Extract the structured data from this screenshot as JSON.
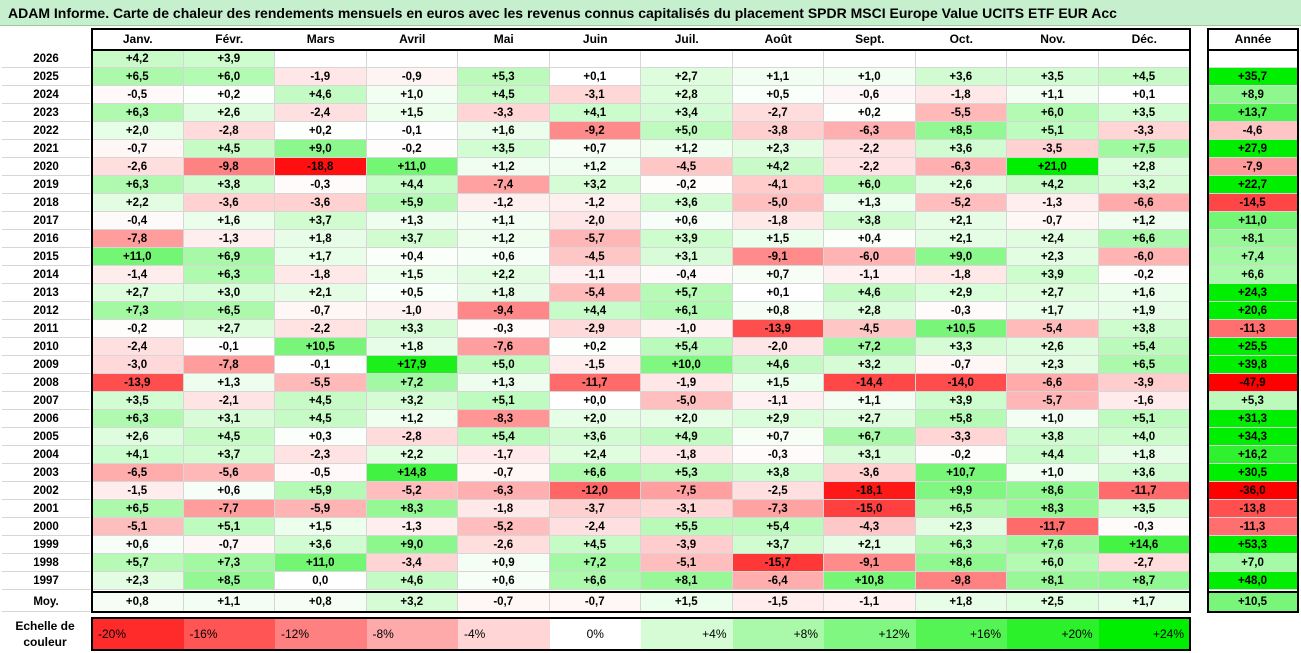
{
  "title": "ADAM Informe. Carte de chaleur des rendements mensuels en euros avec les revenus connus capitalisés du placement SPDR MSCI Europe Value UCITS ETF EUR Acc",
  "chart_data": {
    "type": "heatmap",
    "months": [
      "Janv.",
      "Févr.",
      "Mars",
      "Avril",
      "Mai",
      "Juin",
      "Juil.",
      "Août",
      "Sept.",
      "Oct.",
      "Nov.",
      "Déc."
    ],
    "annual_label": "Année",
    "average_label": "Moy.",
    "rows": [
      {
        "year": "2026",
        "values": [
          "+4,2",
          "+3,9",
          "",
          "",
          "",
          "",
          "",
          "",
          "",
          "",
          "",
          ""
        ],
        "annual": ""
      },
      {
        "year": "2025",
        "values": [
          "+6,5",
          "+6,0",
          "-1,9",
          "-0,9",
          "+5,3",
          "+0,1",
          "+2,7",
          "+1,1",
          "+1,0",
          "+3,6",
          "+3,5",
          "+4,5"
        ],
        "annual": "+35,7"
      },
      {
        "year": "2024",
        "values": [
          "-0,5",
          "+0,2",
          "+4,6",
          "+1,0",
          "+4,5",
          "-3,1",
          "+2,8",
          "+0,5",
          "-0,6",
          "-1,8",
          "+1,1",
          "+0,1"
        ],
        "annual": "+8,9"
      },
      {
        "year": "2023",
        "values": [
          "+6,3",
          "+2,6",
          "-2,4",
          "+1,5",
          "-3,3",
          "+4,1",
          "+3,4",
          "-2,7",
          "+0,2",
          "-5,5",
          "+6,0",
          "+3,5"
        ],
        "annual": "+13,7"
      },
      {
        "year": "2022",
        "values": [
          "+2,0",
          "-2,8",
          "+0,2",
          "-0,1",
          "+1,6",
          "-9,2",
          "+5,0",
          "-3,8",
          "-6,3",
          "+8,5",
          "+5,1",
          "-3,3"
        ],
        "annual": "-4,6"
      },
      {
        "year": "2021",
        "values": [
          "-0,7",
          "+4,5",
          "+9,0",
          "-0,2",
          "+3,5",
          "+0,7",
          "+1,2",
          "+2,3",
          "-2,2",
          "+3,6",
          "-3,5",
          "+7,5"
        ],
        "annual": "+27,9"
      },
      {
        "year": "2020",
        "values": [
          "-2,6",
          "-9,8",
          "-18,8",
          "+11,0",
          "+1,2",
          "+1,2",
          "-4,5",
          "+4,2",
          "-2,2",
          "-6,3",
          "+21,0",
          "+2,8"
        ],
        "annual": "-7,9"
      },
      {
        "year": "2019",
        "values": [
          "+6,3",
          "+3,8",
          "-0,3",
          "+4,4",
          "-7,4",
          "+3,2",
          "-0,2",
          "-4,1",
          "+6,0",
          "+2,6",
          "+4,2",
          "+3,2"
        ],
        "annual": "+22,7"
      },
      {
        "year": "2018",
        "values": [
          "+2,2",
          "-3,6",
          "-3,6",
          "+5,9",
          "-1,2",
          "-1,2",
          "+3,6",
          "-5,0",
          "+1,3",
          "-5,2",
          "-1,3",
          "-6,6"
        ],
        "annual": "-14,5"
      },
      {
        "year": "2017",
        "values": [
          "-0,4",
          "+1,6",
          "+3,7",
          "+1,3",
          "+1,1",
          "-2,0",
          "+0,6",
          "-1,8",
          "+3,8",
          "+2,1",
          "-0,7",
          "+1,2"
        ],
        "annual": "+11,0"
      },
      {
        "year": "2016",
        "values": [
          "-7,8",
          "-1,3",
          "+1,8",
          "+3,7",
          "+1,2",
          "-5,7",
          "+3,9",
          "+1,5",
          "+0,4",
          "+2,1",
          "+2,4",
          "+6,6"
        ],
        "annual": "+8,1"
      },
      {
        "year": "2015",
        "values": [
          "+11,0",
          "+6,9",
          "+1,7",
          "+0,4",
          "+0,6",
          "-4,5",
          "+3,1",
          "-9,1",
          "-6,0",
          "+9,0",
          "+2,3",
          "-6,0"
        ],
        "annual": "+7,4"
      },
      {
        "year": "2014",
        "values": [
          "-1,4",
          "+6,3",
          "-1,8",
          "+1,5",
          "+2,2",
          "-1,1",
          "-0,4",
          "+0,7",
          "-1,1",
          "-1,8",
          "+3,9",
          "-0,2"
        ],
        "annual": "+6,6"
      },
      {
        "year": "2013",
        "values": [
          "+2,7",
          "+3,0",
          "+2,1",
          "+0,5",
          "+1,8",
          "-5,4",
          "+5,7",
          "+0,1",
          "+4,6",
          "+2,9",
          "+2,7",
          "+1,6"
        ],
        "annual": "+24,3"
      },
      {
        "year": "2012",
        "values": [
          "+7,3",
          "+6,5",
          "-0,7",
          "-1,0",
          "-9,4",
          "+4,4",
          "+6,1",
          "+0,8",
          "+2,8",
          "-0,3",
          "+1,7",
          "+1,9"
        ],
        "annual": "+20,6"
      },
      {
        "year": "2011",
        "values": [
          "-0,2",
          "+2,7",
          "-2,2",
          "+3,3",
          "-0,3",
          "-2,9",
          "-1,0",
          "-13,9",
          "-4,5",
          "+10,5",
          "-5,4",
          "+3,8"
        ],
        "annual": "-11,3"
      },
      {
        "year": "2010",
        "values": [
          "-2,4",
          "-0,1",
          "+10,5",
          "+1,8",
          "-7,6",
          "+0,2",
          "+5,4",
          "-2,0",
          "+7,2",
          "+3,3",
          "+2,6",
          "+5,4"
        ],
        "annual": "+25,5"
      },
      {
        "year": "2009",
        "values": [
          "-3,0",
          "-7,8",
          "-0,1",
          "+17,9",
          "+5,0",
          "-1,5",
          "+10,0",
          "+4,6",
          "+3,2",
          "-0,7",
          "+2,3",
          "+6,5"
        ],
        "annual": "+39,8"
      },
      {
        "year": "2008",
        "values": [
          "-13,9",
          "+1,3",
          "-5,5",
          "+7,2",
          "+1,3",
          "-11,7",
          "-1,9",
          "+1,5",
          "-14,4",
          "-14,0",
          "-6,6",
          "-3,9"
        ],
        "annual": "-47,9"
      },
      {
        "year": "2007",
        "values": [
          "+3,5",
          "-2,1",
          "+4,5",
          "+3,2",
          "+5,1",
          "+0,0",
          "-5,0",
          "-1,1",
          "+1,1",
          "+3,9",
          "-5,7",
          "-1,6"
        ],
        "annual": "+5,3"
      },
      {
        "year": "2006",
        "values": [
          "+6,3",
          "+3,1",
          "+4,5",
          "+1,2",
          "-8,3",
          "+2,0",
          "+2,0",
          "+2,9",
          "+2,7",
          "+5,8",
          "+1,0",
          "+5,1"
        ],
        "annual": "+31,3"
      },
      {
        "year": "2005",
        "values": [
          "+2,6",
          "+4,5",
          "+0,3",
          "-2,8",
          "+5,4",
          "+3,6",
          "+4,9",
          "+0,7",
          "+6,7",
          "-3,3",
          "+3,8",
          "+4,0"
        ],
        "annual": "+34,3"
      },
      {
        "year": "2004",
        "values": [
          "+4,1",
          "+3,7",
          "-2,3",
          "+2,2",
          "-1,7",
          "+2,4",
          "-1,8",
          "-0,3",
          "+3,1",
          "-0,2",
          "+4,4",
          "+1,8"
        ],
        "annual": "+16,2"
      },
      {
        "year": "2003",
        "values": [
          "-6,5",
          "-5,6",
          "-0,5",
          "+14,8",
          "-0,7",
          "+6,6",
          "+5,3",
          "+3,8",
          "-3,6",
          "+10,7",
          "+1,0",
          "+3,6"
        ],
        "annual": "+30,5"
      },
      {
        "year": "2002",
        "values": [
          "-1,5",
          "+0,6",
          "+5,9",
          "-5,2",
          "-6,3",
          "-12,0",
          "-7,5",
          "-2,5",
          "-18,1",
          "+9,9",
          "+8,6",
          "-11,7"
        ],
        "annual": "-36,0"
      },
      {
        "year": "2001",
        "values": [
          "+6,5",
          "-7,7",
          "-5,9",
          "+8,3",
          "-1,8",
          "-3,7",
          "-3,1",
          "-7,3",
          "-15,0",
          "+6,5",
          "+8,3",
          "+3,5"
        ],
        "annual": "-13,8"
      },
      {
        "year": "2000",
        "values": [
          "-5,1",
          "+5,1",
          "+1,5",
          "-1,3",
          "-5,2",
          "-2,4",
          "+5,5",
          "+5,4",
          "-4,3",
          "+2,3",
          "-11,7",
          "-0,3"
        ],
        "annual": "-11,3"
      },
      {
        "year": "1999",
        "values": [
          "+0,6",
          "-0,7",
          "+3,6",
          "+9,0",
          "-2,6",
          "+4,5",
          "-3,9",
          "+3,7",
          "+2,1",
          "+6,3",
          "+7,6",
          "+14,6"
        ],
        "annual": "+53,3"
      },
      {
        "year": "1998",
        "values": [
          "+5,7",
          "+7,3",
          "+11,0",
          "-3,4",
          "+0,9",
          "+7,2",
          "-5,1",
          "-15,7",
          "-9,1",
          "+8,6",
          "+6,0",
          "-2,7"
        ],
        "annual": "+7,0"
      },
      {
        "year": "1997",
        "values": [
          "+2,3",
          "+8,5",
          "0,0",
          "+4,6",
          "+0,6",
          "+6,6",
          "+8,1",
          "-6,4",
          "+10,8",
          "-9,8",
          "+8,1",
          "+8,7"
        ],
        "annual": "+48,0"
      }
    ],
    "average": {
      "values": [
        "+0,8",
        "+1,1",
        "+0,8",
        "+3,2",
        "-0,7",
        "-0,7",
        "+1,5",
        "-1,5",
        "-1,1",
        "+1,8",
        "+2,5",
        "+1,7"
      ],
      "annual": "+10,5"
    },
    "legend": {
      "title": "Echelle de couleur",
      "labels": [
        "-20%",
        "-16%",
        "-12%",
        "-8%",
        "-4%",
        "0%",
        "+4%",
        "+8%",
        "+12%",
        "+16%",
        "+20%",
        "+24%"
      ],
      "levels": [
        -20,
        -16,
        -12,
        -8,
        -4,
        0,
        4,
        8,
        12,
        16,
        20,
        24
      ]
    },
    "colors": {
      "negative": "#ff0000",
      "neutral": "#ffffff",
      "positive": "#00ee00",
      "header": "#c6efce"
    }
  }
}
